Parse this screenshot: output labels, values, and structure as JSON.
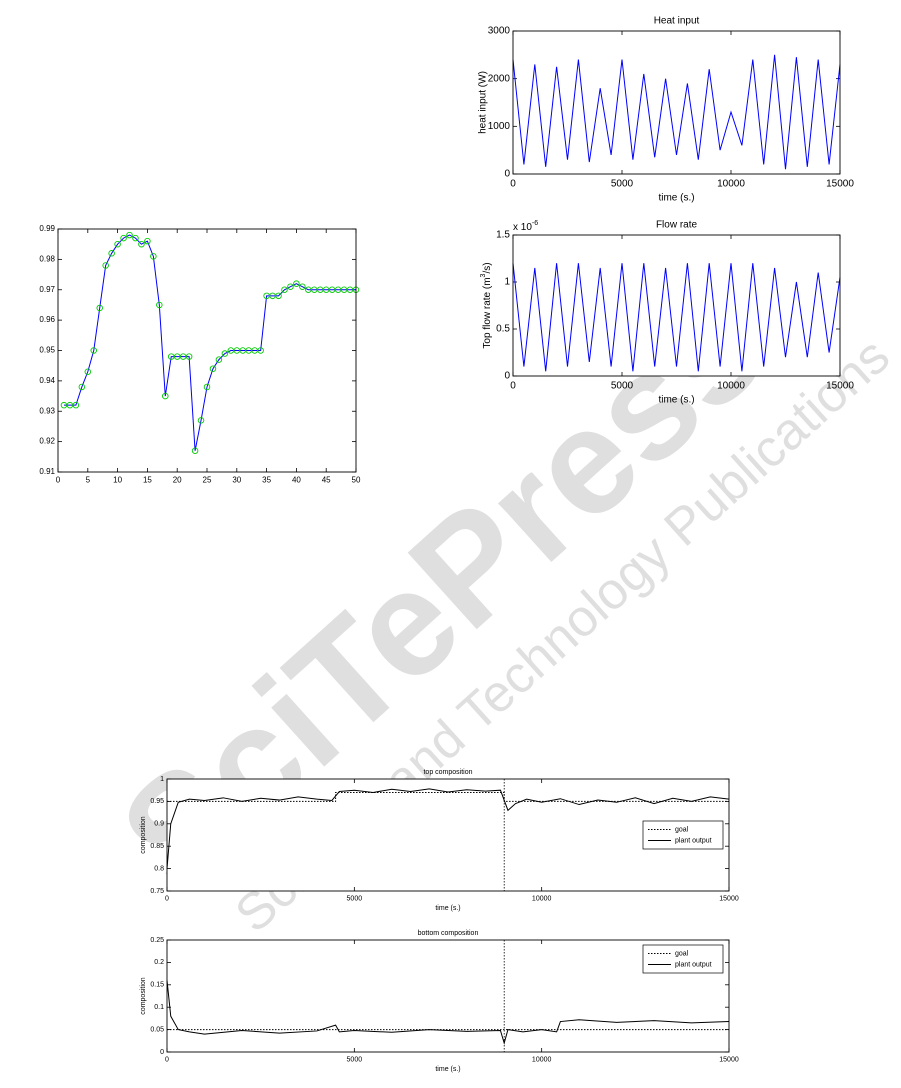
{
  "watermark": {
    "title": "SciTePress",
    "subtitle": "Science and Technology Publications"
  },
  "chart_data": [
    {
      "type": "line",
      "xlim": [
        0,
        50
      ],
      "ylim": [
        0.91,
        0.99
      ],
      "xticks": [
        0,
        5,
        10,
        15,
        20,
        25,
        30,
        35,
        40,
        45,
        50
      ],
      "yticks": [
        0.91,
        0.92,
        0.93,
        0.94,
        0.95,
        0.96,
        0.97,
        0.98,
        0.99
      ],
      "series": [
        {
          "color": "#0000ff",
          "marker": "circle",
          "marker_color": "#00cc00",
          "x": [
            1,
            2,
            3,
            4,
            5,
            6,
            7,
            8,
            9,
            10,
            11,
            12,
            13,
            14,
            15,
            16,
            17,
            18,
            19,
            20,
            21,
            22,
            23,
            24,
            25,
            26,
            27,
            28,
            29,
            30,
            31,
            32,
            33,
            34,
            35,
            36,
            37,
            38,
            39,
            40,
            41,
            42,
            43,
            44,
            45,
            46,
            47,
            48,
            49,
            50
          ],
          "values": [
            0.932,
            0.932,
            0.932,
            0.938,
            0.943,
            0.95,
            0.964,
            0.978,
            0.982,
            0.985,
            0.987,
            0.988,
            0.987,
            0.985,
            0.986,
            0.981,
            0.965,
            0.935,
            0.948,
            0.948,
            0.948,
            0.948,
            0.917,
            0.927,
            0.938,
            0.944,
            0.947,
            0.949,
            0.95,
            0.95,
            0.95,
            0.95,
            0.95,
            0.95,
            0.968,
            0.968,
            0.968,
            0.97,
            0.971,
            0.972,
            0.971,
            0.97,
            0.97,
            0.97,
            0.97,
            0.97,
            0.97,
            0.97,
            0.97,
            0.97
          ]
        }
      ]
    },
    {
      "type": "line",
      "title": "Heat input",
      "xlabel": "time (s.)",
      "ylabel": "heat input (W)",
      "xlim": [
        0,
        15000
      ],
      "ylim": [
        0,
        3000
      ],
      "xticks": [
        0,
        5000,
        10000,
        15000
      ],
      "yticks": [
        0,
        1000,
        2000,
        3000
      ],
      "series": [
        {
          "color": "#0000ff",
          "x": [
            0,
            500,
            1000,
            1500,
            2000,
            2500,
            3000,
            3500,
            4000,
            4500,
            5000,
            5500,
            6000,
            6500,
            7000,
            7500,
            8000,
            8500,
            9000,
            9500,
            10000,
            10500,
            11000,
            11500,
            12000,
            12500,
            13000,
            13500,
            14000,
            14500,
            15000
          ],
          "values": [
            2400,
            200,
            2300,
            150,
            2250,
            300,
            2400,
            250,
            1800,
            400,
            2400,
            300,
            2100,
            350,
            2000,
            400,
            1900,
            300,
            2200,
            500,
            1300,
            600,
            2400,
            200,
            2500,
            100,
            2450,
            150,
            2400,
            200,
            2300
          ]
        }
      ]
    },
    {
      "type": "line",
      "title": "Flow rate",
      "xlabel": "time (s.)",
      "ylabel_parts": [
        "Top flow rate (m",
        "3",
        "/s)"
      ],
      "multiplier_parts": [
        "x 10",
        "-6"
      ],
      "xlim": [
        0,
        15000
      ],
      "ylim": [
        0,
        1.5
      ],
      "xticks": [
        0,
        5000,
        10000,
        15000
      ],
      "yticks": [
        0,
        0.5,
        1,
        1.5
      ],
      "series": [
        {
          "color": "#0000ff",
          "x": [
            0,
            500,
            1000,
            1500,
            2000,
            2500,
            3000,
            3500,
            4000,
            4500,
            5000,
            5500,
            6000,
            6500,
            7000,
            7500,
            8000,
            8500,
            9000,
            9500,
            10000,
            10500,
            11000,
            11500,
            12000,
            12500,
            13000,
            13500,
            14000,
            14500,
            15000
          ],
          "values": [
            1.2,
            0.1,
            1.15,
            0.05,
            1.2,
            0.1,
            1.2,
            0.15,
            1.15,
            0.1,
            1.2,
            0.05,
            1.2,
            0.1,
            1.15,
            0.1,
            1.2,
            0.05,
            1.2,
            0.1,
            1.2,
            0.05,
            1.2,
            0.1,
            1.15,
            0.2,
            1.0,
            0.2,
            1.1,
            0.25,
            1.05
          ]
        }
      ]
    },
    {
      "type": "line",
      "title": "top composition",
      "xlabel": "time (s.)",
      "ylabel": "composition",
      "xlim": [
        0,
        15000
      ],
      "ylim": [
        0.75,
        1
      ],
      "xticks": [
        0,
        5000,
        10000,
        15000
      ],
      "yticks": [
        0.75,
        0.8,
        0.85,
        0.9,
        0.95,
        1
      ],
      "vline": 9000,
      "legend": "east",
      "series": [
        {
          "name": "goal",
          "color": "#000000",
          "dash": "dotted",
          "x": [
            0,
            4500,
            4500,
            9000,
            9000,
            15000
          ],
          "values": [
            0.95,
            0.95,
            0.97,
            0.97,
            0.95,
            0.95
          ]
        },
        {
          "name": "plant output",
          "color": "#000000",
          "x": [
            0,
            100,
            300,
            600,
            1000,
            1500,
            2000,
            2500,
            3000,
            3500,
            4000,
            4400,
            4600,
            5000,
            5500,
            6000,
            6500,
            7000,
            7500,
            8000,
            8500,
            8900,
            9100,
            9300,
            9600,
            10000,
            10500,
            11000,
            11500,
            12000,
            12500,
            13000,
            13500,
            14000,
            14500,
            15000
          ],
          "values": [
            0.8,
            0.9,
            0.948,
            0.955,
            0.952,
            0.958,
            0.95,
            0.957,
            0.953,
            0.96,
            0.955,
            0.952,
            0.972,
            0.975,
            0.97,
            0.977,
            0.972,
            0.978,
            0.971,
            0.976,
            0.973,
            0.975,
            0.93,
            0.945,
            0.955,
            0.948,
            0.956,
            0.943,
            0.953,
            0.948,
            0.958,
            0.945,
            0.957,
            0.95,
            0.96,
            0.955
          ]
        }
      ]
    },
    {
      "type": "line",
      "title": "bottom composition",
      "xlabel": "time (s.)",
      "ylabel": "composition",
      "xlim": [
        0,
        15000
      ],
      "ylim": [
        0,
        0.25
      ],
      "xticks": [
        0,
        5000,
        10000,
        15000
      ],
      "yticks": [
        0,
        0.05,
        0.1,
        0.15,
        0.2,
        0.25
      ],
      "vline": 9000,
      "legend": "northeast",
      "series": [
        {
          "name": "goal",
          "color": "#000000",
          "dash": "dotted",
          "x": [
            0,
            9000,
            15000
          ],
          "values": [
            0.05,
            0.05,
            0.05
          ]
        },
        {
          "name": "plant output",
          "color": "#000000",
          "x": [
            0,
            100,
            300,
            600,
            1000,
            2000,
            3000,
            4000,
            4500,
            4600,
            5000,
            6000,
            7000,
            8000,
            8900,
            9000,
            9100,
            9500,
            10000,
            10400,
            10500,
            11000,
            12000,
            13000,
            14000,
            15000
          ],
          "values": [
            0.16,
            0.08,
            0.05,
            0.045,
            0.04,
            0.048,
            0.042,
            0.047,
            0.06,
            0.045,
            0.048,
            0.044,
            0.05,
            0.046,
            0.048,
            0.02,
            0.05,
            0.045,
            0.05,
            0.045,
            0.068,
            0.072,
            0.066,
            0.07,
            0.065,
            0.068
          ]
        }
      ]
    }
  ]
}
